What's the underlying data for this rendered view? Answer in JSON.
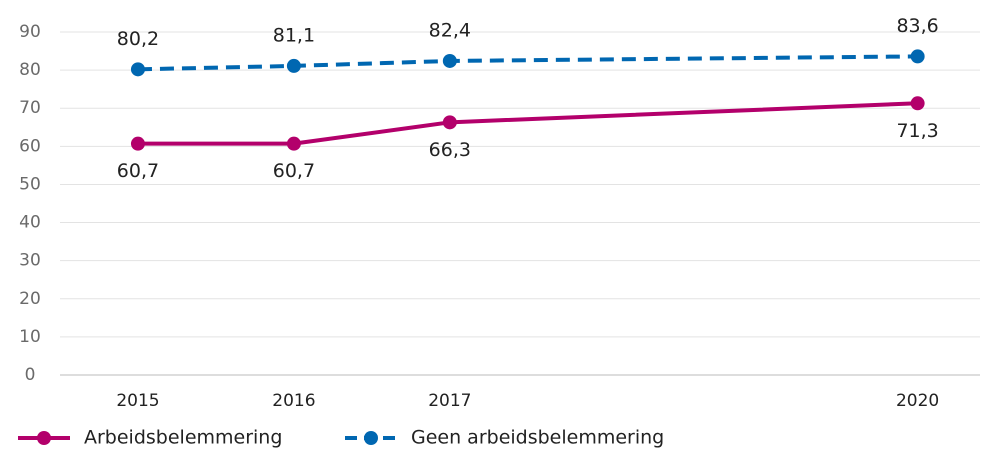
{
  "chart_data": {
    "type": "line",
    "x": [
      2015,
      2016,
      2017,
      2020
    ],
    "xlim": [
      2014.5,
      2020.4
    ],
    "xticks": [
      2015,
      2016,
      2017,
      2020
    ],
    "ylim": [
      0,
      90
    ],
    "yticks": [
      0,
      10,
      20,
      30,
      40,
      50,
      60,
      70,
      80,
      90
    ],
    "grid": true,
    "legend": "bottom",
    "series": [
      {
        "name": "Arbeidsbelemmering",
        "color": "#b3006b",
        "line_style": "solid",
        "label_position": "below",
        "values": [
          60.7,
          60.7,
          66.3,
          71.3
        ],
        "value_labels": [
          "60,7",
          "60,7",
          "66,3",
          "71,3"
        ]
      },
      {
        "name": "Geen arbeidsbelemmering",
        "color": "#0067b1",
        "line_style": "dashed",
        "label_position": "above",
        "values": [
          80.2,
          81.1,
          82.4,
          83.6
        ],
        "value_labels": [
          "80,2",
          "81,1",
          "82,4",
          "83,6"
        ]
      }
    ]
  }
}
